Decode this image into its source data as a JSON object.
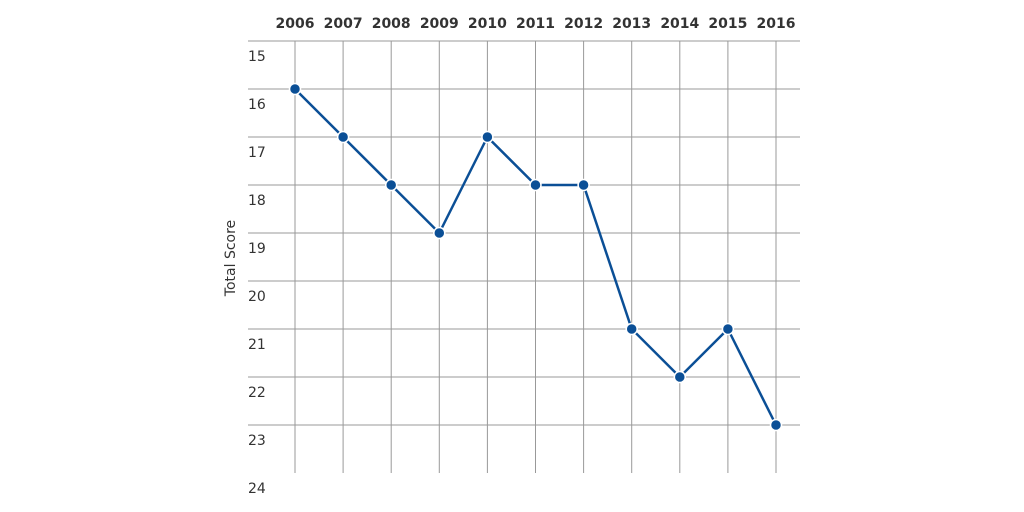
{
  "chart_data": {
    "type": "line",
    "y_axis_label": "Total Score",
    "categories": [
      "2006",
      "2007",
      "2008",
      "2009",
      "2010",
      "2011",
      "2012",
      "2013",
      "2014",
      "2015",
      "2016"
    ],
    "series": [
      {
        "name": "Total Score",
        "color": "#0b4f96",
        "values": [
          16,
          17,
          18,
          19,
          17,
          18,
          18,
          21,
          22,
          21,
          23
        ]
      }
    ],
    "ylim": [
      15,
      24
    ],
    "yticks": [
      15,
      16,
      17,
      18,
      19,
      20,
      21,
      22,
      23,
      24
    ],
    "y_inverted": true,
    "grid": true
  }
}
